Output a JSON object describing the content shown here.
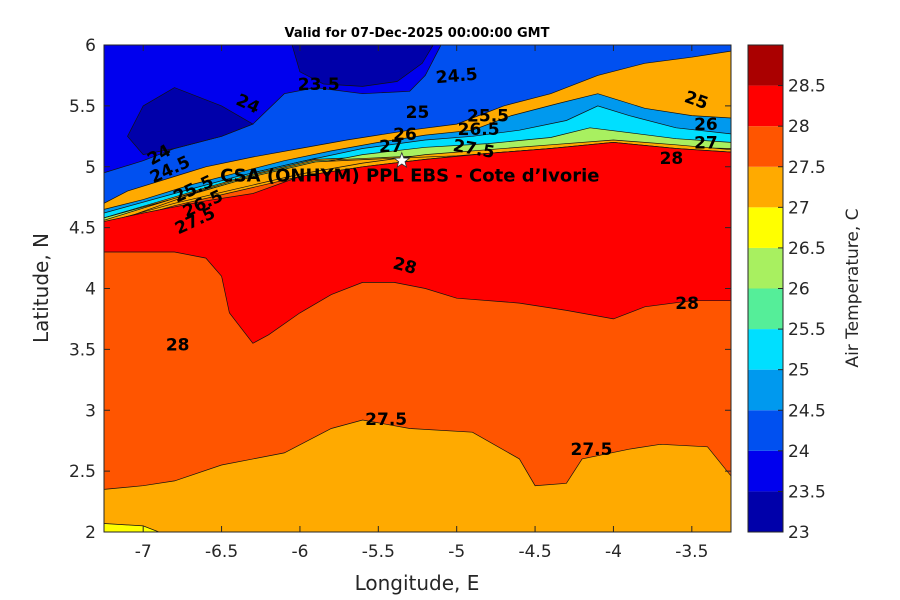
{
  "chart_data": {
    "type": "contour",
    "title": "Valid for 07-Dec-2025 00:00:00 GMT",
    "xlabel": "Longitude, E",
    "ylabel": "Latitude, N",
    "xlim": [
      -7.25,
      -3.25
    ],
    "ylim": [
      2,
      6
    ],
    "x_ticks": [
      -7,
      -6.5,
      -6,
      -5.5,
      -5,
      -4.5,
      -4,
      -3.5
    ],
    "x_tick_labels": [
      "-7",
      "-6.5",
      "-6",
      "-5.5",
      "-5",
      "-4.5",
      "-4",
      "-3.5"
    ],
    "y_ticks": [
      2,
      2.5,
      3,
      3.5,
      4,
      4.5,
      5,
      5.5,
      6
    ],
    "y_tick_labels": [
      "2",
      "2.5",
      "3",
      "3.5",
      "4",
      "4.5",
      "5",
      "5.5",
      "6"
    ],
    "colorbar": {
      "label": "Air Temperature, C",
      "levels": [
        23,
        23.5,
        24,
        24.5,
        25,
        25.5,
        26,
        26.5,
        27,
        27.5,
        28,
        28.5
      ],
      "level_labels": [
        "23",
        "23.5",
        "24",
        "24.5",
        "25",
        "25.5",
        "26",
        "26.5",
        "27",
        "27.5",
        "28",
        "28.5"
      ],
      "colors": [
        "#0000aa",
        "#0000ee",
        "#0050f0",
        "#0099ee",
        "#00dfff",
        "#55ee99",
        "#a8f060",
        "#ffff00",
        "#ffaa00",
        "#ff5500",
        "#ff0000",
        "#aa0000"
      ]
    },
    "site": {
      "name": "CSA (ONHYM) PPL EBS  - Cote d’Ivorie",
      "lon": -5.35,
      "lat": 5.05
    },
    "regions": [
      {
        "level": 24,
        "poly": [
          [
            -7.25,
            4.7
          ],
          [
            -7.1,
            4.8
          ],
          [
            -6.8,
            4.92
          ],
          [
            -6.6,
            5.0
          ],
          [
            -6.3,
            5.08
          ],
          [
            -6.0,
            5.15
          ],
          [
            -5.7,
            5.22
          ],
          [
            -5.3,
            5.3
          ],
          [
            -5.0,
            5.35
          ],
          [
            -4.7,
            5.5
          ],
          [
            -4.4,
            5.6
          ],
          [
            -4.1,
            5.75
          ],
          [
            -3.8,
            5.85
          ],
          [
            -3.5,
            5.9
          ],
          [
            -3.25,
            5.95
          ],
          [
            -3.25,
            6
          ],
          [
            -7.25,
            6
          ]
        ]
      },
      {
        "level": 23.5,
        "poly": [
          [
            -7.25,
            4.95
          ],
          [
            -7.0,
            5.05
          ],
          [
            -6.8,
            5.15
          ],
          [
            -6.5,
            5.25
          ],
          [
            -6.3,
            5.35
          ],
          [
            -6.1,
            5.6
          ],
          [
            -5.9,
            5.65
          ],
          [
            -5.6,
            5.6
          ],
          [
            -5.3,
            5.62
          ],
          [
            -5.2,
            5.75
          ],
          [
            -5.1,
            6
          ],
          [
            -7.25,
            6
          ]
        ]
      },
      {
        "level": 23,
        "poly": [
          [
            -7.1,
            5.25
          ],
          [
            -7.0,
            5.5
          ],
          [
            -6.8,
            5.65
          ],
          [
            -6.5,
            5.5
          ],
          [
            -6.3,
            5.35
          ],
          [
            -6.5,
            5.25
          ],
          [
            -6.8,
            5.15
          ],
          [
            -7.0,
            5.1
          ]
        ]
      },
      {
        "level": 22.5,
        "poly": [
          [
            -6.05,
            6
          ],
          [
            -6.0,
            5.78
          ],
          [
            -5.85,
            5.68
          ],
          [
            -5.6,
            5.66
          ],
          [
            -5.38,
            5.7
          ],
          [
            -5.22,
            5.85
          ],
          [
            -5.15,
            6
          ]
        ]
      },
      {
        "level": 24.5,
        "poly": [
          [
            -7.25,
            4.65
          ],
          [
            -7.0,
            4.73
          ],
          [
            -6.7,
            4.85
          ],
          [
            -6.4,
            4.95
          ],
          [
            -6.1,
            5.05
          ],
          [
            -5.8,
            5.13
          ],
          [
            -5.5,
            5.2
          ],
          [
            -5.2,
            5.26
          ],
          [
            -4.9,
            5.3
          ],
          [
            -4.65,
            5.42
          ],
          [
            -4.35,
            5.52
          ],
          [
            -4.1,
            5.6
          ],
          [
            -3.8,
            5.48
          ],
          [
            -3.5,
            5.42
          ],
          [
            -3.25,
            5.4
          ],
          [
            -3.25,
            5.2
          ],
          [
            -3.6,
            5.18
          ],
          [
            -4.0,
            5.22
          ],
          [
            -4.5,
            5.17
          ],
          [
            -5.0,
            5.12
          ],
          [
            -5.4,
            5.1
          ],
          [
            -5.9,
            5.07
          ],
          [
            -6.3,
            4.95
          ],
          [
            -6.7,
            4.8
          ],
          [
            -7.25,
            4.6
          ]
        ]
      },
      {
        "level": 25,
        "poly": [
          [
            -7.25,
            4.62
          ],
          [
            -6.8,
            4.78
          ],
          [
            -6.4,
            4.92
          ],
          [
            -6.0,
            5.04
          ],
          [
            -5.6,
            5.15
          ],
          [
            -5.2,
            5.22
          ],
          [
            -4.9,
            5.25
          ],
          [
            -4.6,
            5.3
          ],
          [
            -4.3,
            5.38
          ],
          [
            -4.1,
            5.5
          ],
          [
            -3.9,
            5.42
          ],
          [
            -3.6,
            5.32
          ],
          [
            -3.25,
            5.27
          ],
          [
            -3.25,
            5.18
          ],
          [
            -3.6,
            5.17
          ],
          [
            -4.0,
            5.21
          ],
          [
            -4.5,
            5.16
          ],
          [
            -5.0,
            5.11
          ],
          [
            -5.4,
            5.09
          ],
          [
            -5.9,
            5.06
          ],
          [
            -6.3,
            4.94
          ],
          [
            -6.7,
            4.79
          ],
          [
            -7.25,
            4.58
          ]
        ]
      },
      {
        "level": 26,
        "poly": [
          [
            -7.25,
            4.58
          ],
          [
            -6.8,
            4.74
          ],
          [
            -6.4,
            4.88
          ],
          [
            -6.0,
            5.0
          ],
          [
            -5.6,
            5.1
          ],
          [
            -5.2,
            5.16
          ],
          [
            -4.8,
            5.19
          ],
          [
            -4.4,
            5.24
          ],
          [
            -4.15,
            5.32
          ],
          [
            -3.9,
            5.28
          ],
          [
            -3.6,
            5.23
          ],
          [
            -3.25,
            5.2
          ],
          [
            -3.25,
            5.15
          ],
          [
            -3.6,
            5.16
          ],
          [
            -4.0,
            5.2
          ],
          [
            -4.5,
            5.15
          ],
          [
            -5.0,
            5.1
          ],
          [
            -5.4,
            5.08
          ],
          [
            -5.9,
            5.05
          ],
          [
            -6.3,
            4.93
          ],
          [
            -6.7,
            4.78
          ],
          [
            -7.25,
            4.56
          ]
        ]
      },
      {
        "level": 27,
        "poly": [
          [
            -7.25,
            4.54
          ],
          [
            -6.8,
            4.7
          ],
          [
            -6.4,
            4.82
          ],
          [
            -6.0,
            4.94
          ],
          [
            -5.6,
            5.03
          ],
          [
            -5.2,
            5.1
          ],
          [
            -4.8,
            5.14
          ],
          [
            -4.4,
            5.18
          ],
          [
            -4.0,
            5.22
          ],
          [
            -3.6,
            5.18
          ],
          [
            -3.25,
            5.14
          ],
          [
            -3.25,
            5.12
          ],
          [
            -3.6,
            5.14
          ],
          [
            -4.0,
            5.19
          ],
          [
            -4.5,
            5.14
          ],
          [
            -5.0,
            5.09
          ],
          [
            -5.4,
            5.07
          ],
          [
            -5.9,
            5.04
          ],
          [
            -6.3,
            4.92
          ],
          [
            -6.7,
            4.77
          ],
          [
            -7.25,
            4.52
          ]
        ]
      },
      {
        "level": 27.5,
        "poly": [
          [
            -7.25,
            4.52
          ],
          [
            -6.8,
            4.68
          ],
          [
            -6.4,
            4.8
          ],
          [
            -6.0,
            4.92
          ],
          [
            -5.6,
            5.0
          ],
          [
            -5.2,
            5.06
          ],
          [
            -4.8,
            5.11
          ],
          [
            -4.4,
            5.15
          ],
          [
            -4.0,
            5.2
          ],
          [
            -3.6,
            5.15
          ],
          [
            -3.25,
            5.12
          ],
          [
            -3.25,
            2.46
          ],
          [
            -3.4,
            2.7
          ],
          [
            -3.7,
            2.72
          ],
          [
            -3.9,
            2.68
          ],
          [
            -4.2,
            2.6
          ],
          [
            -4.3,
            2.4
          ],
          [
            -4.5,
            2.38
          ],
          [
            -4.6,
            2.6
          ],
          [
            -4.9,
            2.82
          ],
          [
            -5.3,
            2.85
          ],
          [
            -5.6,
            2.92
          ],
          [
            -5.8,
            2.85
          ],
          [
            -6.1,
            2.65
          ],
          [
            -6.5,
            2.55
          ],
          [
            -6.8,
            2.42
          ],
          [
            -7.0,
            2.38
          ],
          [
            -7.25,
            2.35
          ]
        ]
      },
      {
        "level": 28,
        "poly": [
          [
            -7.25,
            4.3
          ],
          [
            -6.8,
            4.3
          ],
          [
            -6.6,
            4.25
          ],
          [
            -6.5,
            4.1
          ],
          [
            -6.45,
            3.8
          ],
          [
            -6.3,
            3.55
          ],
          [
            -6.2,
            3.62
          ],
          [
            -6.0,
            3.8
          ],
          [
            -5.8,
            3.95
          ],
          [
            -5.6,
            4.05
          ],
          [
            -5.4,
            4.05
          ],
          [
            -5.2,
            4.0
          ],
          [
            -5.0,
            3.92
          ],
          [
            -4.6,
            3.88
          ],
          [
            -4.3,
            3.82
          ],
          [
            -4.0,
            3.75
          ],
          [
            -3.8,
            3.85
          ],
          [
            -3.5,
            3.9
          ],
          [
            -3.25,
            3.9
          ],
          [
            -3.25,
            5.12
          ],
          [
            -3.6,
            5.15
          ],
          [
            -4.0,
            5.2
          ],
          [
            -4.4,
            5.15
          ],
          [
            -4.8,
            5.11
          ],
          [
            -5.2,
            5.06
          ],
          [
            -5.6,
            5.0
          ],
          [
            -6.0,
            4.92
          ],
          [
            -6.3,
            4.78
          ],
          [
            -6.6,
            4.72
          ],
          [
            -7.0,
            4.62
          ],
          [
            -7.25,
            4.55
          ]
        ]
      },
      {
        "level": 26.5,
        "poly": [
          [
            -7.25,
            2
          ],
          [
            -6.9,
            2
          ],
          [
            -7.0,
            2.05
          ],
          [
            -7.25,
            2.07
          ]
        ]
      }
    ],
    "contour_labels": [
      {
        "text": "23.5",
        "lon": -5.88,
        "lat": 5.68,
        "angle": 0
      },
      {
        "text": "24",
        "lon": -6.33,
        "lat": 5.52,
        "angle": 25
      },
      {
        "text": "24.5",
        "lon": -5.0,
        "lat": 5.75,
        "angle": -5
      },
      {
        "text": "25",
        "lon": -3.47,
        "lat": 5.55,
        "angle": 20
      },
      {
        "text": "24",
        "lon": -6.9,
        "lat": 5.1,
        "angle": -30
      },
      {
        "text": "24.5",
        "lon": -6.83,
        "lat": 4.98,
        "angle": -25
      },
      {
        "text": "25",
        "lon": -5.25,
        "lat": 5.45,
        "angle": 0
      },
      {
        "text": "25.5",
        "lon": -4.8,
        "lat": 5.42,
        "angle": 0
      },
      {
        "text": "26",
        "lon": -3.41,
        "lat": 5.35,
        "angle": 0
      },
      {
        "text": "26",
        "lon": -5.33,
        "lat": 5.27,
        "angle": 0
      },
      {
        "text": "26.5",
        "lon": -4.86,
        "lat": 5.31,
        "angle": 0
      },
      {
        "text": "27",
        "lon": -3.41,
        "lat": 5.2,
        "angle": 0
      },
      {
        "text": "27",
        "lon": -5.42,
        "lat": 5.17,
        "angle": 0
      },
      {
        "text": "27.5",
        "lon": -4.89,
        "lat": 5.15,
        "angle": 10
      },
      {
        "text": "28",
        "lon": -3.63,
        "lat": 5.07,
        "angle": 0
      },
      {
        "text": "25.5",
        "lon": -6.68,
        "lat": 4.82,
        "angle": -25
      },
      {
        "text": "26.5",
        "lon": -6.62,
        "lat": 4.7,
        "angle": -25
      },
      {
        "text": "27.5",
        "lon": -6.67,
        "lat": 4.56,
        "angle": -25
      },
      {
        "text": "28",
        "lon": -5.33,
        "lat": 4.19,
        "angle": 15
      },
      {
        "text": "28",
        "lon": -3.53,
        "lat": 3.88,
        "angle": 0
      },
      {
        "text": "28",
        "lon": -6.78,
        "lat": 3.54,
        "angle": 0
      },
      {
        "text": "27.5",
        "lon": -5.45,
        "lat": 2.93,
        "angle": 0
      },
      {
        "text": "27.5",
        "lon": -4.14,
        "lat": 2.68,
        "angle": 0
      }
    ]
  }
}
